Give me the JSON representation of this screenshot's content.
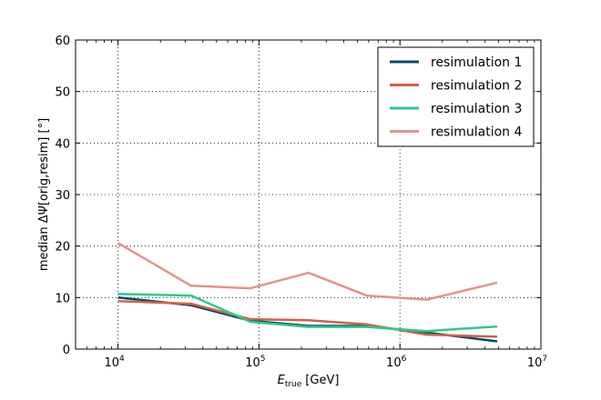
{
  "chart_data": {
    "type": "line",
    "xlabel_main": "E",
    "xlabel_sub": "true",
    "xlabel_unit": "[GeV]",
    "ylabel": "median ΔΨ[orig,resim] [°]",
    "xscale": "log",
    "xlim": [
      5000,
      10000000
    ],
    "ylim": [
      0,
      60
    ],
    "grid": true,
    "grid_style": "dotted",
    "legend_position": "top-right",
    "x_ticks": [
      {
        "value": 10000,
        "base": "10",
        "exp": "4"
      },
      {
        "value": 100000,
        "base": "10",
        "exp": "5"
      },
      {
        "value": 1000000,
        "base": "10",
        "exp": "6"
      },
      {
        "value": 10000000,
        "base": "10",
        "exp": "7"
      }
    ],
    "y_ticks": [
      {
        "value": 0,
        "label": "0"
      },
      {
        "value": 10,
        "label": "10"
      },
      {
        "value": 20,
        "label": "20"
      },
      {
        "value": 30,
        "label": "30"
      },
      {
        "value": 40,
        "label": "40"
      },
      {
        "value": 50,
        "label": "50"
      },
      {
        "value": 60,
        "label": "60"
      }
    ],
    "x": [
      10000,
      33000,
      87000,
      225000,
      580000,
      1550000,
      4900000
    ],
    "series": [
      {
        "name": "resimulation 1",
        "color": "#0d4a63",
        "values": [
          10.0,
          8.5,
          5.5,
          4.5,
          4.5,
          3.2,
          1.5
        ]
      },
      {
        "name": "resimulation 2",
        "color": "#d0614c",
        "values": [
          9.3,
          8.8,
          5.8,
          5.6,
          4.8,
          2.8,
          2.4
        ]
      },
      {
        "name": "resimulation 3",
        "color": "#2ec98a",
        "values": [
          10.7,
          10.4,
          5.3,
          4.3,
          4.3,
          3.5,
          4.4
        ]
      },
      {
        "name": "resimulation 4",
        "color": "#e0958a",
        "values": [
          20.6,
          12.3,
          11.8,
          14.8,
          10.4,
          9.6,
          12.9
        ]
      }
    ]
  }
}
